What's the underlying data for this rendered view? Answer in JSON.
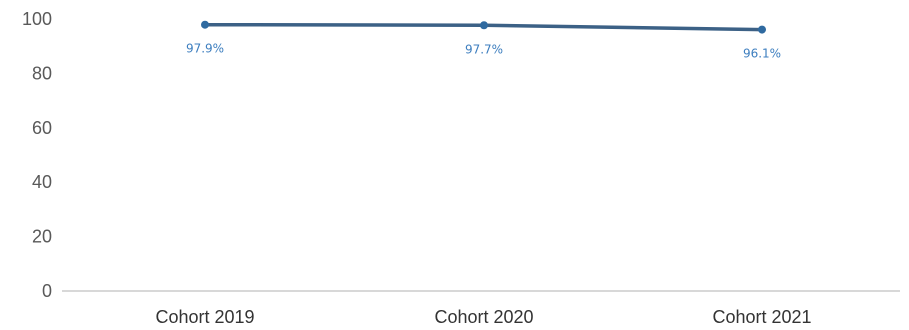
{
  "chart_data": {
    "type": "line",
    "categories": [
      "Cohort 2019",
      "Cohort 2020",
      "Cohort 2021"
    ],
    "series": [
      {
        "values": [
          97.9,
          97.7,
          96.1
        ],
        "labels": [
          "97.9%",
          "97.7%",
          "96.1%"
        ]
      }
    ],
    "yticks": [
      "0",
      "20",
      "40",
      "60",
      "80",
      "100"
    ],
    "ylim": [
      0,
      100
    ],
    "grid": false,
    "legend": "none",
    "colors": {
      "line": "#3c6186",
      "marker": "#2f6aa0",
      "data_label": "#3d7ebf",
      "axis": "#b0b0b0",
      "tick_text": "#595959",
      "category_text": "#333333"
    }
  }
}
